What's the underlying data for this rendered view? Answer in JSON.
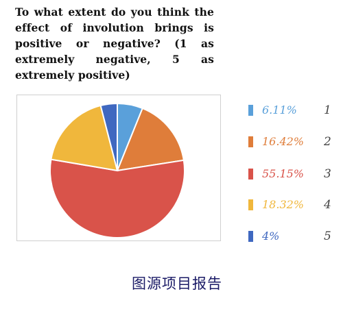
{
  "question": "To what extent do you think the effect of involution brings is positive or negative? (1 as extremely negative, 5 as extremely positive)",
  "caption": "图源项目报告",
  "chart_data": {
    "type": "pie",
    "title": "",
    "categories": [
      "1",
      "2",
      "3",
      "4",
      "5"
    ],
    "values": [
      6.11,
      16.42,
      55.15,
      18.32,
      4
    ],
    "labels": [
      "6.11%",
      "16.42%",
      "55.15%",
      "18.32%",
      "4%"
    ],
    "colors": [
      "#5aa0da",
      "#df7d3a",
      "#d9534a",
      "#f0b73c",
      "#3f68c0"
    ],
    "legend": "right",
    "start_angle": "top, clockwise"
  }
}
